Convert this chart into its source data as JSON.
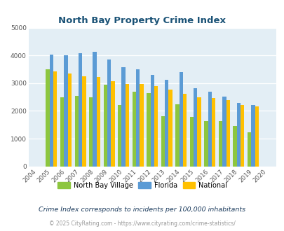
{
  "title": "North Bay Property Crime Index",
  "years": [
    "2004",
    "2005",
    "2006",
    "2007",
    "2008",
    "2009",
    "2010",
    "2011",
    "2012",
    "2013",
    "2014",
    "2015",
    "2016",
    "2017",
    "2018",
    "2019",
    "2020"
  ],
  "north_bay": [
    0,
    3500,
    2500,
    2550,
    2500,
    2950,
    2200,
    2700,
    2650,
    1800,
    2250,
    1780,
    1620,
    1630,
    1450,
    1230,
    0
  ],
  "florida": [
    0,
    4020,
    4000,
    4080,
    4140,
    3850,
    3570,
    3510,
    3300,
    3120,
    3400,
    2820,
    2700,
    2510,
    2300,
    2200,
    0
  ],
  "national": [
    0,
    3420,
    3350,
    3260,
    3220,
    3060,
    2970,
    2960,
    2900,
    2760,
    2620,
    2490,
    2460,
    2380,
    2200,
    2160,
    0
  ],
  "bar_color_nbv": "#8dc63f",
  "bar_color_fl": "#5b9bd5",
  "bar_color_nat": "#ffc000",
  "bg_color": "#e3eef5",
  "title_color": "#1a5276",
  "footer1": "Crime Index corresponds to incidents per 100,000 inhabitants",
  "footer2": "© 2025 CityRating.com - https://www.cityrating.com/crime-statistics/",
  "ylim": [
    0,
    5000
  ],
  "yticks": [
    0,
    1000,
    2000,
    3000,
    4000,
    5000
  ]
}
